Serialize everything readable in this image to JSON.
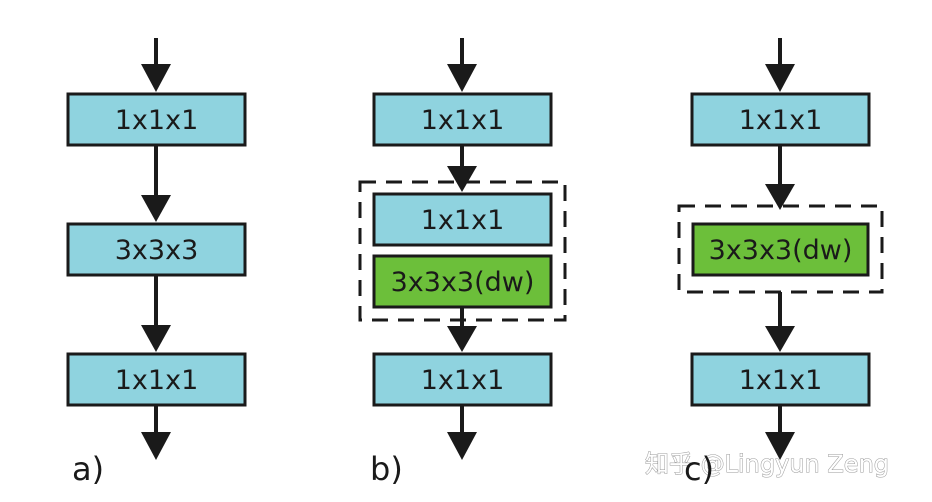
{
  "panels": [
    {
      "label": "a)",
      "blocks": [
        {
          "label": "1x1x1",
          "kind": "pointwise"
        },
        {
          "label": "3x3x3",
          "kind": "standard"
        },
        {
          "label": "1x1x1",
          "kind": "pointwise"
        }
      ]
    },
    {
      "label": "b)",
      "blocks": [
        {
          "label": "1x1x1",
          "kind": "pointwise"
        },
        {
          "label": "1x1x1",
          "kind": "pointwise"
        },
        {
          "label": "3x3x3(dw)",
          "kind": "depthwise"
        },
        {
          "label": "1x1x1",
          "kind": "pointwise"
        }
      ]
    },
    {
      "label": "c)",
      "blocks": [
        {
          "label": "1x1x1",
          "kind": "pointwise"
        },
        {
          "label": "3x3x3(dw)",
          "kind": "depthwise"
        },
        {
          "label": "1x1x1",
          "kind": "pointwise"
        }
      ]
    }
  ],
  "watermark": "知乎 @Lingyun Zeng",
  "colors": {
    "block_fill": "#8fd3df",
    "depthwise_fill": "#6cbf3a",
    "stroke": "#1a1a1a",
    "dashed_group": "#1a1a1a"
  }
}
